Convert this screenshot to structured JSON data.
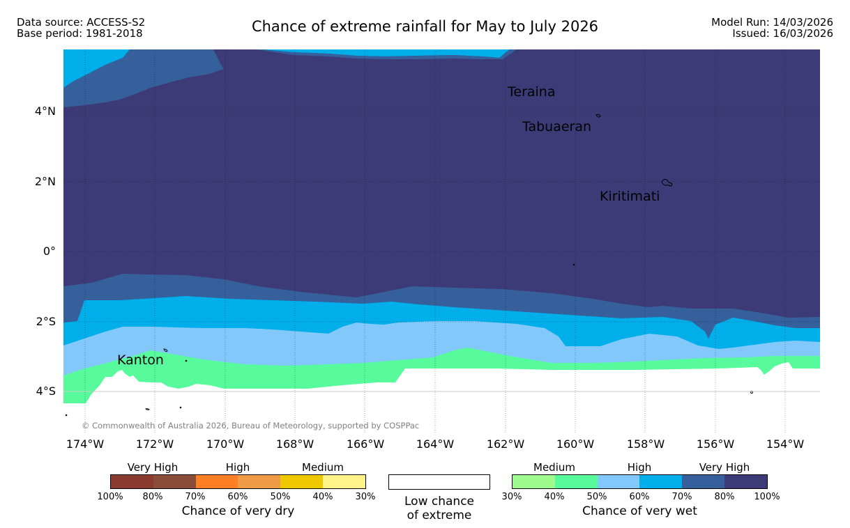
{
  "header": {
    "data_source": "Data source: ACCESS-S2",
    "base_period": "Base period: 1981-2018",
    "title": "Chance of extreme rainfall for May to July 2026",
    "model_run": "Model Run: 14/03/2026",
    "issued": "Issued: 16/03/2026"
  },
  "map": {
    "lat_labels": [
      "4°N",
      "2°N",
      "0°",
      "2°S",
      "4°S"
    ],
    "lon_labels": [
      "174°W",
      "172°W",
      "170°W",
      "168°W",
      "166°W",
      "164°W",
      "162°W",
      "160°W",
      "158°W",
      "156°W",
      "154°W"
    ],
    "places": [
      "Teraina",
      "Tabuaeran",
      "Kiritimati",
      "Kanton"
    ],
    "copyright": "© Commonwealth of Australia 2026, Bureau of Meteorology, supported by COSPPac",
    "colors": {
      "very_high_wet": "#3d3b77",
      "high_wet_80": "#35609c",
      "high_wet_60": "#00aeea",
      "medium_wet_50": "#82c8fa",
      "medium_wet_40": "#57fb9c",
      "medium_wet_30": "#9efb8e",
      "low": "#ffffff"
    }
  },
  "legend": {
    "dry": {
      "groups": [
        "Very High",
        "High",
        "Medium"
      ],
      "ticks": [
        "100%",
        "80%",
        "70%",
        "60%",
        "50%",
        "40%",
        "30%"
      ],
      "colors": [
        "#8b3a30",
        "#8a4e38",
        "#fe7f24",
        "#ef9a45",
        "#efc900",
        "#fff38a"
      ],
      "title": "Chance of very dry"
    },
    "low": {
      "line1": "Low chance",
      "line2": "of extreme"
    },
    "wet": {
      "groups": [
        "Medium",
        "High",
        "Very High"
      ],
      "ticks": [
        "30%",
        "40%",
        "50%",
        "60%",
        "70%",
        "80%",
        "100%"
      ],
      "colors": [
        "#9efb8e",
        "#57fb9c",
        "#82c8fa",
        "#00aeea",
        "#35609c",
        "#3d3b77"
      ],
      "title": "Chance of very wet"
    }
  }
}
